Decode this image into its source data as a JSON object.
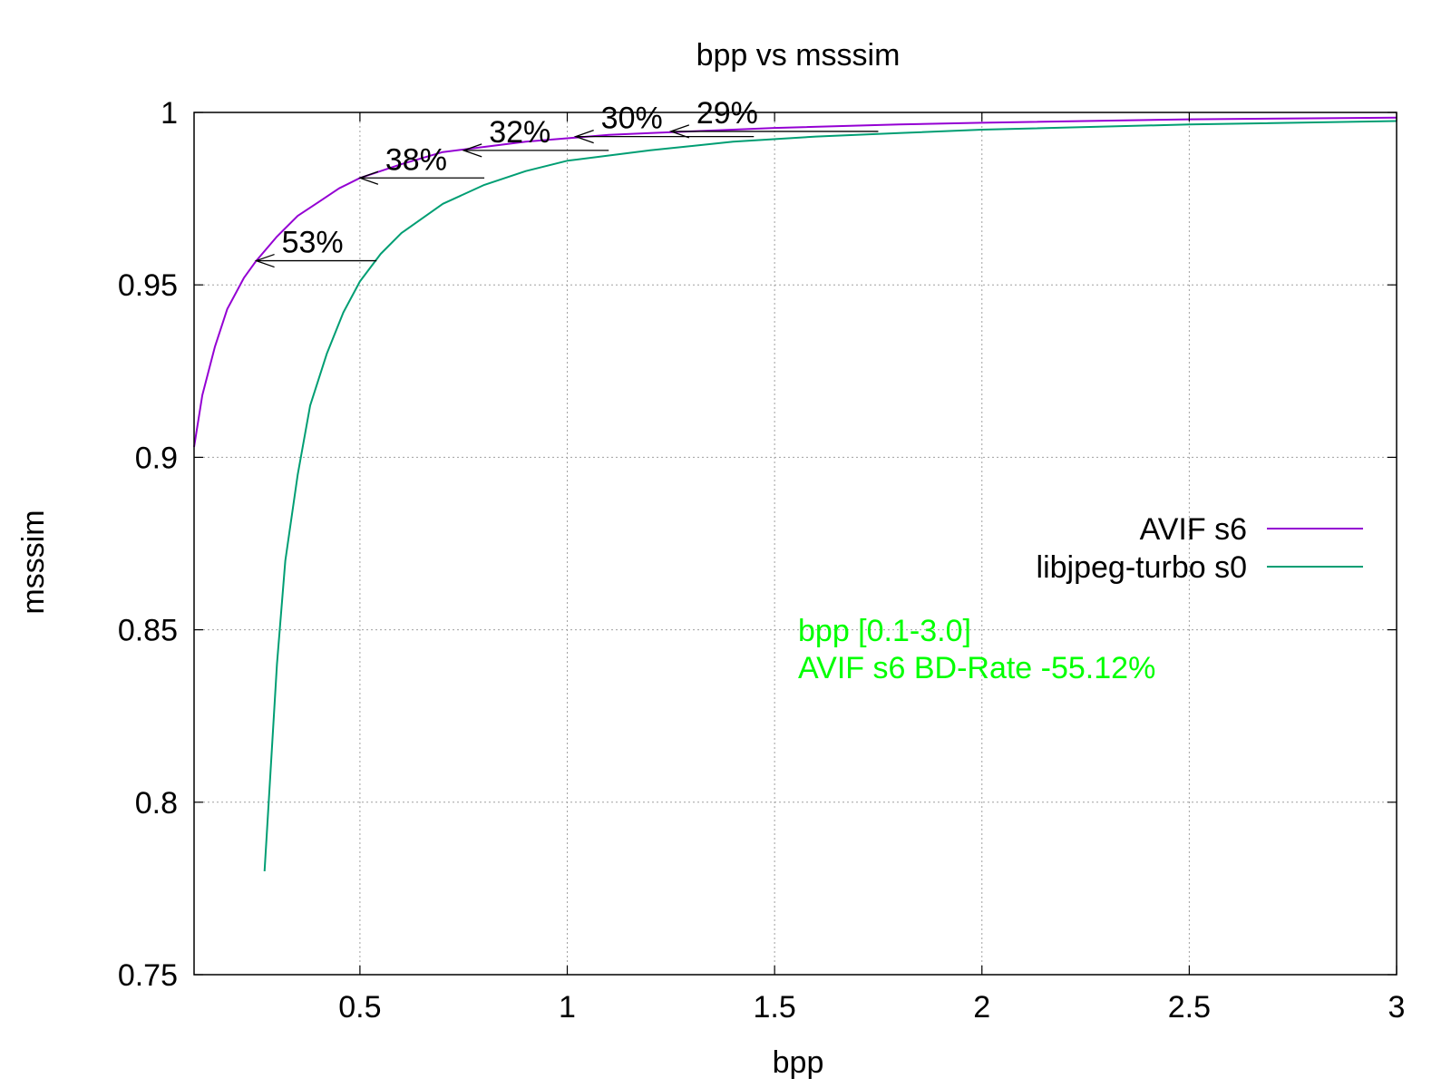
{
  "chart_data": {
    "type": "line",
    "title": "bpp vs msssim",
    "xlabel": "bpp",
    "ylabel": "msssim",
    "xlim": [
      0.1,
      3.0
    ],
    "ylim": [
      0.75,
      1.0
    ],
    "grid": true,
    "x_ticks": [
      "0.5",
      "1",
      "1.5",
      "2",
      "2.5",
      "3"
    ],
    "y_ticks": [
      "0.75",
      "0.8",
      "0.85",
      "0.9",
      "0.95",
      "1"
    ],
    "legend_position": "right",
    "series": [
      {
        "name": "AVIF s6",
        "color": "#9400d3",
        "x": [
          0.1,
          0.12,
          0.15,
          0.18,
          0.22,
          0.25,
          0.3,
          0.35,
          0.4,
          0.45,
          0.5,
          0.6,
          0.7,
          0.8,
          0.9,
          1.0,
          1.1,
          1.2,
          1.3,
          1.5,
          1.8,
          2.0,
          2.5,
          3.0
        ],
        "y": [
          0.903,
          0.918,
          0.932,
          0.943,
          0.952,
          0.957,
          0.964,
          0.97,
          0.974,
          0.978,
          0.981,
          0.985,
          0.9885,
          0.99,
          0.9915,
          0.9925,
          0.9935,
          0.994,
          0.9945,
          0.9955,
          0.9965,
          0.997,
          0.998,
          0.9985
        ]
      },
      {
        "name": "libjpeg-turbo s0",
        "color": "#009e73",
        "x": [
          0.27,
          0.28,
          0.3,
          0.32,
          0.35,
          0.38,
          0.42,
          0.46,
          0.5,
          0.55,
          0.6,
          0.7,
          0.8,
          0.9,
          1.0,
          1.2,
          1.4,
          1.6,
          1.8,
          2.0,
          2.5,
          3.0
        ],
        "y": [
          0.78,
          0.8,
          0.84,
          0.87,
          0.895,
          0.915,
          0.93,
          0.942,
          0.951,
          0.959,
          0.965,
          0.9735,
          0.979,
          0.983,
          0.986,
          0.989,
          0.9915,
          0.993,
          0.994,
          0.995,
          0.9965,
          0.9975
        ]
      }
    ],
    "annotations": [
      {
        "label": "53%",
        "x_from": 0.54,
        "x_to": 0.25,
        "y": 0.957
      },
      {
        "label": "38%",
        "x_from": 0.8,
        "x_to": 0.5,
        "y": 0.981
      },
      {
        "label": "32%",
        "x_from": 1.1,
        "x_to": 0.75,
        "y": 0.989
      },
      {
        "label": "30%",
        "x_from": 1.45,
        "x_to": 1.02,
        "y": 0.993
      },
      {
        "label": "29%",
        "x_from": 1.75,
        "x_to": 1.25,
        "y": 0.9945
      }
    ],
    "info_text": [
      "bpp [0.1-3.0]",
      "AVIF s6 BD-Rate -55.12%"
    ],
    "info_color": "#00ff00"
  }
}
